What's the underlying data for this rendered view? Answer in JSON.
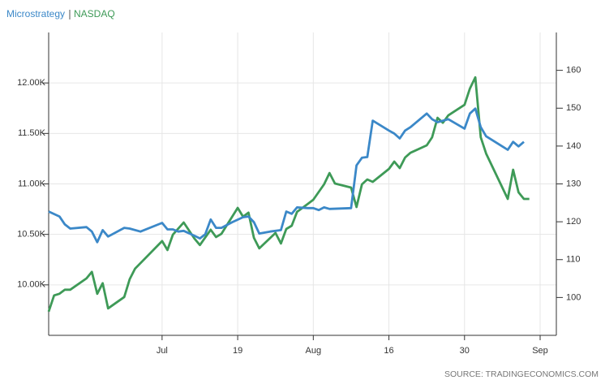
{
  "chart_data": {
    "type": "line",
    "xlim": [
      "06-14",
      "09-16"
    ],
    "xticks": [
      {
        "value": "07-05",
        "label": "Jul"
      },
      {
        "value": "07-19",
        "label": "19"
      },
      {
        "value": "08-02",
        "label": "Aug"
      },
      {
        "value": "08-16",
        "label": "16"
      },
      {
        "value": "08-30",
        "label": "30"
      },
      {
        "value": "09-13",
        "label": "Sep"
      }
    ],
    "ylim": [
      9500,
      12500
    ],
    "yticks": [
      {
        "value": 10000,
        "label": "10.00K"
      },
      {
        "value": 10500,
        "label": "10.50K"
      },
      {
        "value": 11000,
        "label": "11.00K"
      },
      {
        "value": 11500,
        "label": "11.50K"
      },
      {
        "value": 12000,
        "label": "12.00K"
      }
    ],
    "y2lim": [
      90,
      170
    ],
    "y2ticks": [
      100,
      110,
      120,
      130,
      140,
      150,
      160
    ],
    "grid": true,
    "source": "SOURCE: TRADINGECONOMICS.COM",
    "series": [
      {
        "name": "Microstrategy",
        "color": "#3b88c8",
        "axis": "y2",
        "x": [
          "06-14",
          "06-16",
          "06-17",
          "06-18",
          "06-21",
          "06-22",
          "06-23",
          "06-24",
          "06-25",
          "06-28",
          "06-29",
          "07-01",
          "07-05",
          "07-06",
          "07-07",
          "07-08",
          "07-09",
          "07-11",
          "07-12",
          "07-13",
          "07-14",
          "07-15",
          "07-16",
          "07-18",
          "07-20",
          "07-21",
          "07-22",
          "07-23",
          "07-25",
          "07-27",
          "07-28",
          "07-29",
          "07-30",
          "08-01",
          "08-02",
          "08-03",
          "08-04",
          "08-05",
          "08-09",
          "08-10",
          "08-11",
          "08-12",
          "08-13",
          "08-16",
          "08-17",
          "08-18",
          "08-19",
          "08-20",
          "08-23",
          "08-24",
          "08-25",
          "08-27",
          "08-30",
          "08-31",
          "09-01",
          "09-02",
          "09-03",
          "09-06",
          "09-07",
          "09-08",
          "09-09",
          "09-10"
        ],
        "values": [
          122.7,
          121.4,
          119.3,
          118.2,
          118.6,
          117.4,
          114.6,
          117.8,
          116.1,
          118.4,
          118.2,
          117.4,
          119.7,
          118.0,
          118.0,
          117.4,
          117.6,
          116.3,
          115.6,
          116.7,
          120.6,
          118.4,
          118.4,
          119.9,
          121.2,
          121.4,
          119.9,
          116.9,
          117.4,
          117.8,
          122.7,
          122.1,
          123.8,
          123.6,
          123.6,
          123.1,
          123.8,
          123.4,
          123.6,
          134.9,
          136.9,
          137.1,
          146.7,
          144.1,
          143.3,
          142.0,
          144.1,
          145.0,
          148.6,
          147.1,
          146.3,
          147.1,
          144.6,
          148.6,
          149.9,
          145.0,
          142.6,
          139.9,
          139.0,
          141.1,
          139.9,
          141.1
        ]
      },
      {
        "name": "NASDAQ",
        "color": "#3e9a57",
        "x": [
          "06-14",
          "06-15",
          "06-16",
          "06-17",
          "06-18",
          "06-21",
          "06-22",
          "06-23",
          "06-24",
          "06-25",
          "06-28",
          "06-29",
          "06-30",
          "07-05",
          "07-06",
          "07-07",
          "07-09",
          "07-11",
          "07-12",
          "07-14",
          "07-15",
          "07-16",
          "07-19",
          "07-20",
          "07-21",
          "07-22",
          "07-23",
          "07-26",
          "07-27",
          "07-28",
          "07-29",
          "07-30",
          "08-01",
          "08-02",
          "08-04",
          "08-05",
          "08-06",
          "08-09",
          "08-10",
          "08-11",
          "08-12",
          "08-13",
          "08-16",
          "08-17",
          "08-18",
          "08-19",
          "08-20",
          "08-23",
          "08-24",
          "08-25",
          "08-26",
          "08-27",
          "08-30",
          "08-31",
          "09-01",
          "09-02",
          "09-03",
          "09-07",
          "09-08",
          "09-09",
          "09-10",
          "09-11"
        ],
        "values": [
          9735,
          9896,
          9912,
          9952,
          9952,
          10064,
          10129,
          9912,
          10016,
          9767,
          9880,
          10056,
          10161,
          10434,
          10345,
          10498,
          10618,
          10458,
          10394,
          10546,
          10474,
          10506,
          10763,
          10675,
          10715,
          10466,
          10361,
          10514,
          10410,
          10554,
          10586,
          10723,
          10803,
          10843,
          10996,
          11108,
          11004,
          10964,
          10771,
          10996,
          11044,
          11020,
          11149,
          11221,
          11157,
          11261,
          11309,
          11382,
          11462,
          11655,
          11606,
          11679,
          11783,
          11944,
          12056,
          11462,
          11301,
          10851,
          11141,
          10916,
          10851,
          10851
        ]
      }
    ]
  }
}
